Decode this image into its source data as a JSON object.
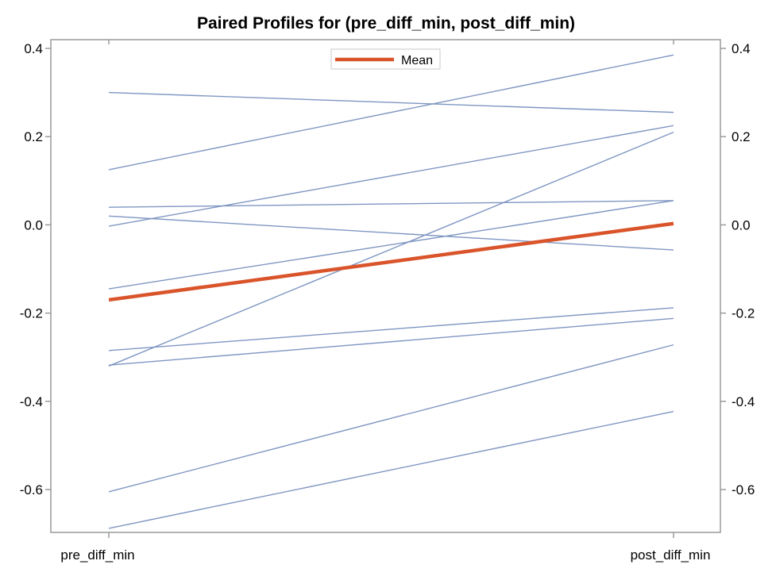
{
  "chart_data": {
    "type": "line",
    "title": "Paired Profiles for (pre_diff_min, post_diff_min)",
    "categories": [
      "pre_diff_min",
      "post_diff_min"
    ],
    "ylim": [
      -0.7,
      0.4
    ],
    "yticks": [
      0.4,
      0.2,
      0.0,
      -0.2,
      -0.4,
      -0.6
    ],
    "ytick_labels": [
      "0.4",
      "0.2",
      "0.0",
      "-0.2",
      "-0.4",
      "-0.6"
    ],
    "grid": false,
    "legend": {
      "position": "top-center",
      "entries": [
        "Mean"
      ]
    },
    "series_color": "#7f96c2",
    "mean_color": "#d9542b",
    "profiles": [
      [
        0.3,
        0.255
      ],
      [
        0.125,
        0.385
      ],
      [
        0.04,
        0.055
      ],
      [
        0.02,
        -0.057
      ],
      [
        -0.003,
        0.225
      ],
      [
        -0.145,
        0.055
      ],
      [
        -0.285,
        -0.188
      ],
      [
        -0.32,
        0.21
      ],
      [
        -0.318,
        -0.212
      ],
      [
        -0.605,
        -0.272
      ],
      [
        -0.688,
        -0.423
      ]
    ],
    "mean": {
      "name": "Mean",
      "values": [
        -0.17,
        0.003
      ]
    }
  }
}
